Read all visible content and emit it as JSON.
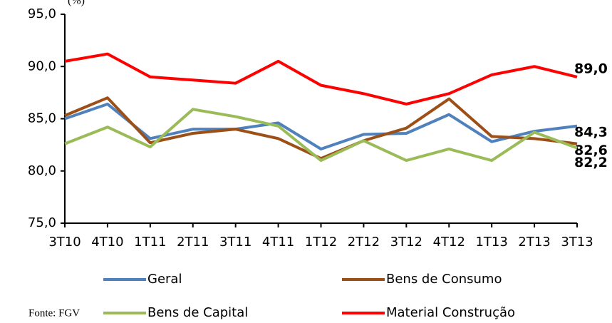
{
  "chart_data": {
    "type": "line",
    "y_label": "(%)",
    "categories": [
      "3T10",
      "4T10",
      "1T11",
      "2T11",
      "3T11",
      "4T11",
      "1T12",
      "2T12",
      "3T12",
      "4T12",
      "1T13",
      "2T13",
      "3T13"
    ],
    "series": [
      {
        "name": "Geral",
        "color": "#4f81bd",
        "values": [
          85.0,
          86.4,
          83.1,
          84.0,
          84.0,
          84.6,
          82.1,
          83.5,
          83.6,
          85.4,
          82.8,
          83.8,
          84.3
        ],
        "value_labels": [
          null,
          null,
          null,
          null,
          null,
          null,
          null,
          null,
          null,
          null,
          null,
          null,
          "84,3"
        ]
      },
      {
        "name": "Bens de Consumo",
        "color": "#9c4f16",
        "values": [
          85.3,
          87.0,
          82.7,
          83.6,
          84.0,
          83.1,
          81.2,
          82.9,
          84.1,
          86.9,
          83.3,
          83.1,
          82.6
        ],
        "value_labels": [
          null,
          null,
          null,
          null,
          null,
          null,
          null,
          null,
          null,
          null,
          null,
          null,
          "82,6"
        ]
      },
      {
        "name": "Bens de Capital",
        "color": "#9bbb59",
        "values": [
          82.6,
          84.2,
          82.3,
          85.9,
          85.2,
          84.3,
          81.0,
          82.9,
          81.0,
          82.1,
          81.0,
          83.7,
          82.2
        ],
        "value_labels": [
          null,
          null,
          null,
          null,
          null,
          null,
          null,
          null,
          null,
          null,
          null,
          null,
          "82,2"
        ]
      },
      {
        "name": "Material Construção",
        "color": "#ff0000",
        "values": [
          90.5,
          91.2,
          89.0,
          88.7,
          88.4,
          90.5,
          88.2,
          87.4,
          86.4,
          87.4,
          89.2,
          90.0,
          89.0
        ],
        "value_labels": [
          null,
          null,
          null,
          null,
          null,
          null,
          null,
          null,
          null,
          null,
          null,
          null,
          "89,0"
        ]
      }
    ],
    "ylim": [
      75,
      95
    ],
    "yticks": [
      {
        "value": 75,
        "label": "75,0"
      },
      {
        "value": 80,
        "label": "80,0"
      },
      {
        "value": 85,
        "label": "85,0"
      },
      {
        "value": 90,
        "label": "90,0"
      },
      {
        "value": 95,
        "label": "95,0"
      }
    ],
    "source": "Fonte: FGV"
  }
}
